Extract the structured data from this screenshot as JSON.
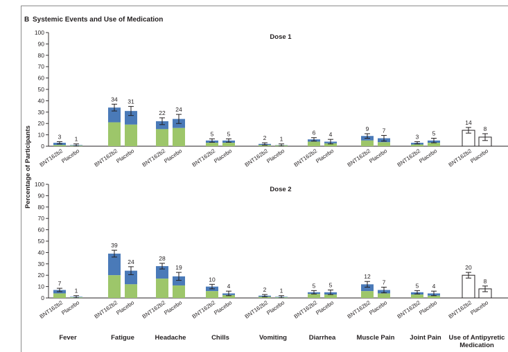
{
  "figure": {
    "panel_letter": "B",
    "panel_title": "Systemic Events and Use of Medication",
    "y_label": "Percentage of Participants"
  },
  "colors": {
    "green": "#9dc66a",
    "blue": "#4a7ab8",
    "outline": "#231f20",
    "frame": "#8c8c8c"
  },
  "chart_data": [
    {
      "type": "bar",
      "title": "Dose 1",
      "ylabel": "Percentage of Participants",
      "ylim": [
        0,
        100
      ],
      "yticks": [
        0,
        10,
        20,
        30,
        40,
        50,
        60,
        70,
        80,
        90,
        100
      ],
      "group_labels": [
        "Fever",
        "Fatigue",
        "Headache",
        "Chills",
        "Vomiting",
        "Diarrhea",
        "Muscle Pain",
        "Joint Pain",
        "Use of Antipyretic Medication"
      ],
      "bar_labels": [
        "BNT162b2",
        "Placebo"
      ],
      "bars": [
        {
          "group": "Fever",
          "arm": "BNT162b2",
          "total": 3,
          "green": 1,
          "err": 1,
          "open": false
        },
        {
          "group": "Fever",
          "arm": "Placebo",
          "total": 1,
          "green": 0.5,
          "err": 1,
          "open": false
        },
        {
          "group": "Fatigue",
          "arm": "BNT162b2",
          "total": 34,
          "green": 21,
          "err": 3,
          "open": false
        },
        {
          "group": "Fatigue",
          "arm": "Placebo",
          "total": 31,
          "green": 19,
          "err": 4,
          "open": false
        },
        {
          "group": "Headache",
          "arm": "BNT162b2",
          "total": 22,
          "green": 15,
          "err": 3,
          "open": false
        },
        {
          "group": "Headache",
          "arm": "Placebo",
          "total": 24,
          "green": 16,
          "err": 4,
          "open": false
        },
        {
          "group": "Chills",
          "arm": "BNT162b2",
          "total": 5,
          "green": 3,
          "err": 1.5,
          "open": false
        },
        {
          "group": "Chills",
          "arm": "Placebo",
          "total": 5,
          "green": 3,
          "err": 1.5,
          "open": false
        },
        {
          "group": "Vomiting",
          "arm": "BNT162b2",
          "total": 2,
          "green": 1,
          "err": 1,
          "open": false
        },
        {
          "group": "Vomiting",
          "arm": "Placebo",
          "total": 1,
          "green": 0.7,
          "err": 1,
          "open": false
        },
        {
          "group": "Diarrhea",
          "arm": "BNT162b2",
          "total": 6,
          "green": 4,
          "err": 1.5,
          "open": false
        },
        {
          "group": "Diarrhea",
          "arm": "Placebo",
          "total": 4,
          "green": 2.5,
          "err": 2,
          "open": false
        },
        {
          "group": "Muscle Pain",
          "arm": "BNT162b2",
          "total": 9,
          "green": 5,
          "err": 2,
          "open": false
        },
        {
          "group": "Muscle Pain",
          "arm": "Placebo",
          "total": 7,
          "green": 3.5,
          "err": 2.5,
          "open": false
        },
        {
          "group": "Joint Pain",
          "arm": "BNT162b2",
          "total": 3,
          "green": 1.5,
          "err": 1,
          "open": false
        },
        {
          "group": "Joint Pain",
          "arm": "Placebo",
          "total": 5,
          "green": 3,
          "err": 2,
          "open": false
        },
        {
          "group": "Use of Antipyretic Medication",
          "arm": "BNT162b2",
          "total": 14,
          "green": 0,
          "err": 2.5,
          "open": true
        },
        {
          "group": "Use of Antipyretic Medication",
          "arm": "Placebo",
          "total": 8,
          "green": 0,
          "err": 3,
          "open": true
        }
      ]
    },
    {
      "type": "bar",
      "title": "Dose 2",
      "ylabel": "Percentage of Participants",
      "ylim": [
        0,
        100
      ],
      "yticks": [
        0,
        10,
        20,
        30,
        40,
        50,
        60,
        70,
        80,
        90,
        100
      ],
      "group_labels": [
        "Fever",
        "Fatigue",
        "Headache",
        "Chills",
        "Vomiting",
        "Diarrhea",
        "Muscle Pain",
        "Joint Pain",
        "Use of Antipyretic Medication"
      ],
      "bar_labels": [
        "BNT162b2",
        "Placebo"
      ],
      "bars": [
        {
          "group": "Fever",
          "arm": "BNT162b2",
          "total": 7,
          "green": 4,
          "err": 1.5,
          "open": false
        },
        {
          "group": "Fever",
          "arm": "Placebo",
          "total": 1,
          "green": 0.5,
          "err": 1,
          "open": false
        },
        {
          "group": "Fatigue",
          "arm": "BNT162b2",
          "total": 39,
          "green": 20,
          "err": 3,
          "open": false
        },
        {
          "group": "Fatigue",
          "arm": "Placebo",
          "total": 24,
          "green": 12,
          "err": 3.5,
          "open": false
        },
        {
          "group": "Headache",
          "arm": "BNT162b2",
          "total": 28,
          "green": 17,
          "err": 2.5,
          "open": false
        },
        {
          "group": "Headache",
          "arm": "Placebo",
          "total": 19,
          "green": 11,
          "err": 3.5,
          "open": false
        },
        {
          "group": "Chills",
          "arm": "BNT162b2",
          "total": 10,
          "green": 6,
          "err": 2,
          "open": false
        },
        {
          "group": "Chills",
          "arm": "Placebo",
          "total": 4,
          "green": 2.5,
          "err": 2,
          "open": false
        },
        {
          "group": "Vomiting",
          "arm": "BNT162b2",
          "total": 2,
          "green": 1,
          "err": 1,
          "open": false
        },
        {
          "group": "Vomiting",
          "arm": "Placebo",
          "total": 1,
          "green": 0.5,
          "err": 1,
          "open": false
        },
        {
          "group": "Diarrhea",
          "arm": "BNT162b2",
          "total": 5,
          "green": 3.5,
          "err": 1.5,
          "open": false
        },
        {
          "group": "Diarrhea",
          "arm": "Placebo",
          "total": 5,
          "green": 3,
          "err": 2,
          "open": false
        },
        {
          "group": "Muscle Pain",
          "arm": "BNT162b2",
          "total": 12,
          "green": 6,
          "err": 2.5,
          "open": false
        },
        {
          "group": "Muscle Pain",
          "arm": "Placebo",
          "total": 7,
          "green": 4,
          "err": 2.5,
          "open": false
        },
        {
          "group": "Joint Pain",
          "arm": "BNT162b2",
          "total": 5,
          "green": 3,
          "err": 1.5,
          "open": false
        },
        {
          "group": "Joint Pain",
          "arm": "Placebo",
          "total": 4,
          "green": 2,
          "err": 2,
          "open": false
        },
        {
          "group": "Use of Antipyretic Medication",
          "arm": "BNT162b2",
          "total": 20,
          "green": 0,
          "err": 2.5,
          "open": true
        },
        {
          "group": "Use of Antipyretic Medication",
          "arm": "Placebo",
          "total": 8,
          "green": 0,
          "err": 2.5,
          "open": true
        }
      ]
    }
  ]
}
